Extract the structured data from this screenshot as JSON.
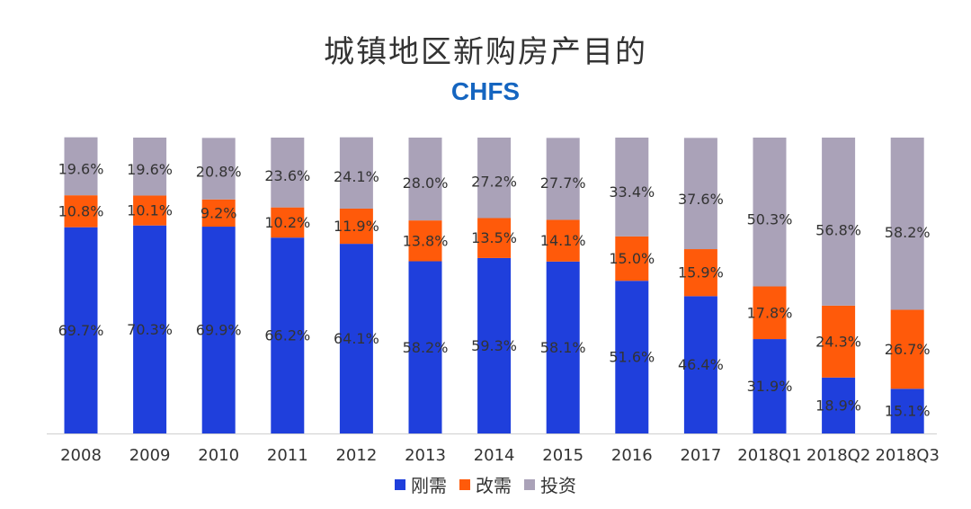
{
  "chart_data": {
    "type": "bar",
    "stacked": true,
    "title": "城镇地区新购房产目的",
    "subtitle": "CHFS",
    "categories": [
      "2008",
      "2009",
      "2010",
      "2011",
      "2012",
      "2013",
      "2014",
      "2015",
      "2016",
      "2017",
      "2018Q1",
      "2018Q2",
      "2018Q3"
    ],
    "series": [
      {
        "name": "刚需",
        "color": "#1f3fdc",
        "values": [
          69.7,
          70.3,
          69.9,
          66.2,
          64.1,
          58.2,
          59.3,
          58.1,
          51.6,
          46.4,
          31.9,
          18.9,
          15.1
        ],
        "labels": [
          "69.7%",
          "70.3%",
          "69.9%",
          "66.2%",
          "64.1%",
          "58.2%",
          "59.3%",
          "58.1%",
          "51.6%",
          "46.4%",
          "31.9%",
          "18.9%",
          "15.1%"
        ]
      },
      {
        "name": "改需",
        "color": "#ff5a0a",
        "values": [
          10.8,
          10.1,
          9.2,
          10.2,
          11.9,
          13.8,
          13.5,
          14.1,
          15.0,
          15.9,
          17.8,
          24.3,
          26.7
        ],
        "labels": [
          "10.8%",
          "10.1%",
          "9.2%",
          "10.2%",
          "11.9%",
          "13.8%",
          "13.5%",
          "14.1%",
          "15.0%",
          "15.9%",
          "17.8%",
          "24.3%",
          "26.7%"
        ]
      },
      {
        "name": "投资",
        "color": "#aaa2b8",
        "values": [
          19.6,
          19.6,
          20.8,
          23.6,
          24.1,
          28.0,
          27.2,
          27.7,
          33.4,
          37.6,
          50.3,
          56.8,
          58.2
        ],
        "labels": [
          "19.6%",
          "19.6%",
          "20.8%",
          "23.6%",
          "24.1%",
          "28.0%",
          "27.2%",
          "27.7%",
          "33.4%",
          "37.6%",
          "50.3%",
          "56.8%",
          "58.2%"
        ]
      }
    ],
    "ylim": [
      0,
      100
    ],
    "grid": false,
    "legend_position": "bottom",
    "title_color": "#333333",
    "subtitle_color": "#1565c0",
    "label_color": "#333333"
  }
}
